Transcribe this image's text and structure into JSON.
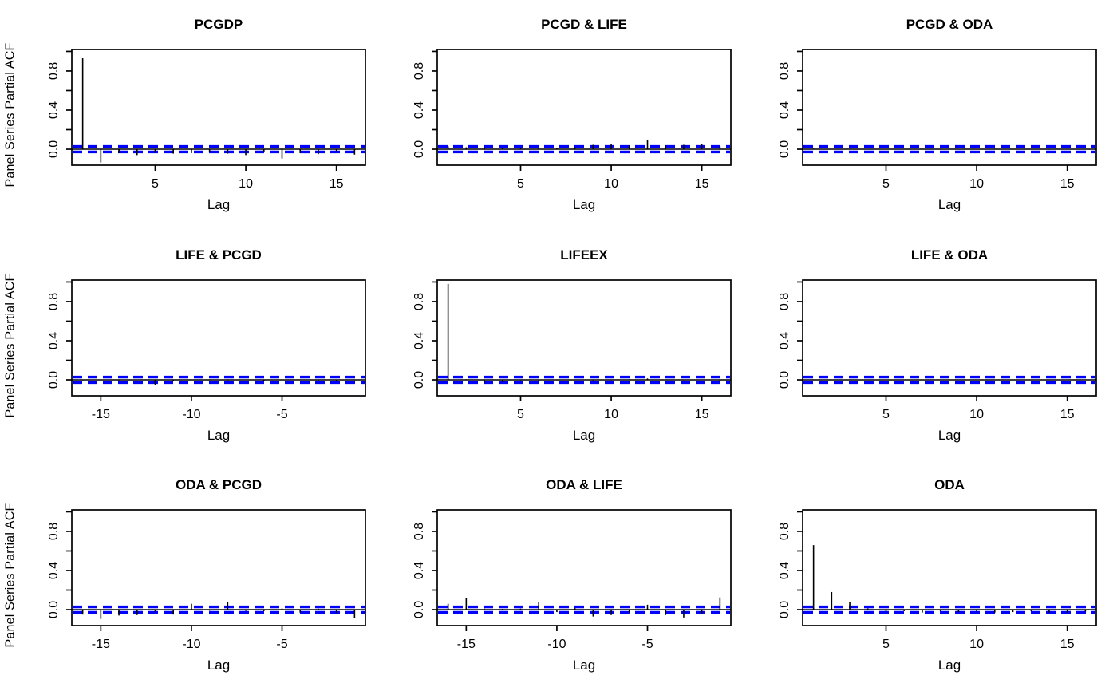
{
  "figure": {
    "ylab": "Panel Series Partial ACF",
    "xlab": "Lag",
    "ylim": [
      -0.163,
      1.02
    ],
    "y_ticks": [
      0,
      0.2,
      0.4,
      0.6,
      0.8,
      1.0
    ],
    "y_labeled_ticks": [
      {
        "v": 0.0,
        "label": "0.0"
      },
      {
        "v": 0.4,
        "label": "0.4"
      },
      {
        "v": 0.8,
        "label": "0.8"
      }
    ],
    "ci": 0.028,
    "colors": {
      "spike": "#000000",
      "zero_line": "#000000",
      "ci_line": "#0000FF",
      "box": "#000000",
      "background": "#FFFFFF",
      "text": "#000000"
    }
  },
  "chart_data": [
    {
      "type": "bar",
      "title": "PCGDP",
      "xlabel": "Lag",
      "xlim": [
        0.4,
        16.6
      ],
      "x_ticks": [
        5,
        10,
        15
      ],
      "x_tick_labels": [
        "5",
        "10",
        "15"
      ],
      "lags": [
        1,
        2,
        3,
        4,
        5,
        6,
        7,
        8,
        9,
        10,
        11,
        12,
        13,
        14,
        15,
        16
      ],
      "values": [
        0.93,
        -0.135,
        -0.04,
        -0.06,
        -0.035,
        -0.045,
        -0.04,
        -0.03,
        -0.045,
        -0.06,
        -0.025,
        -0.095,
        -0.04,
        -0.05,
        -0.02,
        -0.055
      ]
    },
    {
      "type": "bar",
      "title": "PCGD & LIFE",
      "xlabel": "Lag",
      "xlim": [
        0.4,
        16.6
      ],
      "x_ticks": [
        5,
        10,
        15
      ],
      "x_tick_labels": [
        "5",
        "10",
        "15"
      ],
      "lags": [
        1,
        2,
        3,
        4,
        5,
        6,
        7,
        8,
        9,
        10,
        11,
        12,
        13,
        14,
        15,
        16
      ],
      "values": [
        0.03,
        0.02,
        0.02,
        0.015,
        0.01,
        0.01,
        0.015,
        0.02,
        0.045,
        0.05,
        0.04,
        0.09,
        0.04,
        0.045,
        0.05,
        0.03
      ]
    },
    {
      "type": "bar",
      "title": "PCGD & ODA",
      "xlabel": "Lag",
      "xlim": [
        0.4,
        16.6
      ],
      "x_ticks": [
        5,
        10,
        15
      ],
      "x_tick_labels": [
        "5",
        "10",
        "15"
      ],
      "lags": [
        1,
        2,
        3,
        4,
        5,
        6,
        7,
        8,
        9,
        10,
        11,
        12,
        13,
        14,
        15,
        16
      ],
      "values": [
        0.006,
        -0.004,
        0.005,
        -0.004,
        0.004,
        -0.004,
        0.005,
        -0.005,
        0.004,
        -0.004,
        0.005,
        -0.004,
        0.004,
        -0.005,
        0.004,
        -0.004
      ]
    },
    {
      "type": "bar",
      "title": "LIFE & PCGD",
      "xlabel": "Lag",
      "xlim": [
        -16.6,
        -0.4
      ],
      "x_ticks": [
        -15,
        -10,
        -5
      ],
      "x_tick_labels": [
        "-15",
        "-10",
        "-5"
      ],
      "lags": [
        -16,
        -15,
        -14,
        -13,
        -12,
        -11,
        -10,
        -9,
        -8,
        -7,
        -6,
        -5,
        -4,
        -3,
        -2,
        -1
      ],
      "values": [
        -0.005,
        0.004,
        -0.006,
        0.004,
        -0.05,
        -0.008,
        0.004,
        -0.005,
        -0.006,
        0.004,
        -0.008,
        -0.004,
        0.005,
        -0.006,
        -0.01,
        -0.005
      ]
    },
    {
      "type": "bar",
      "title": "LIFEEX",
      "xlabel": "Lag",
      "xlim": [
        0.4,
        16.6
      ],
      "x_ticks": [
        5,
        10,
        15
      ],
      "x_tick_labels": [
        "5",
        "10",
        "15"
      ],
      "lags": [
        1,
        2,
        3,
        4,
        5,
        6,
        7,
        8,
        9,
        10,
        11,
        12,
        13,
        14,
        15,
        16
      ],
      "values": [
        0.98,
        0.006,
        -0.035,
        -0.025,
        -0.006,
        -0.012,
        -0.005,
        -0.004,
        -0.006,
        -0.005,
        0.006,
        0.014,
        0.004,
        -0.005,
        0.004,
        -0.008
      ]
    },
    {
      "type": "bar",
      "title": "LIFE & ODA",
      "xlabel": "Lag",
      "xlim": [
        0.4,
        16.6
      ],
      "x_ticks": [
        5,
        10,
        15
      ],
      "x_tick_labels": [
        "5",
        "10",
        "15"
      ],
      "lags": [
        1,
        2,
        3,
        4,
        5,
        6,
        7,
        8,
        9,
        10,
        11,
        12,
        13,
        14,
        15,
        16
      ],
      "values": [
        0.005,
        -0.003,
        0.004,
        -0.004,
        0.003,
        -0.003,
        0.004,
        -0.004,
        0.003,
        -0.004,
        0.004,
        -0.003,
        0.004,
        -0.004,
        0.003,
        -0.004
      ]
    },
    {
      "type": "bar",
      "title": "ODA & PCGD",
      "xlabel": "Lag",
      "xlim": [
        -16.6,
        -0.4
      ],
      "x_ticks": [
        -15,
        -10,
        -5
      ],
      "x_tick_labels": [
        "-15",
        "-10",
        "-5"
      ],
      "lags": [
        -16,
        -15,
        -14,
        -13,
        -12,
        -11,
        -10,
        -9,
        -8,
        -7,
        -6,
        -5,
        -4,
        -3,
        -2,
        -1
      ],
      "values": [
        -0.05,
        -0.095,
        -0.06,
        -0.055,
        -0.02,
        -0.05,
        0.06,
        -0.01,
        0.078,
        -0.012,
        -0.015,
        0.012,
        -0.03,
        0.01,
        -0.035,
        -0.085
      ]
    },
    {
      "type": "bar",
      "title": "ODA & LIFE",
      "xlabel": "Lag",
      "xlim": [
        -16.6,
        -0.4
      ],
      "x_ticks": [
        -15,
        -10,
        -5
      ],
      "x_tick_labels": [
        "-15",
        "-10",
        "-5"
      ],
      "lags": [
        -16,
        -15,
        -14,
        -13,
        -12,
        -11,
        -10,
        -9,
        -8,
        -7,
        -6,
        -5,
        -4,
        -3,
        -2,
        -1
      ],
      "values": [
        0.06,
        0.115,
        0.01,
        0.008,
        0.01,
        0.08,
        -0.025,
        0.015,
        -0.07,
        -0.055,
        -0.03,
        0.05,
        -0.055,
        -0.08,
        -0.04,
        0.125
      ]
    },
    {
      "type": "bar",
      "title": "ODA",
      "xlabel": "Lag",
      "xlim": [
        0.4,
        16.6
      ],
      "x_ticks": [
        5,
        10,
        15
      ],
      "x_tick_labels": [
        "5",
        "10",
        "15"
      ],
      "lags": [
        1,
        2,
        3,
        4,
        5,
        6,
        7,
        8,
        9,
        10,
        11,
        12,
        13,
        14,
        15,
        16
      ],
      "values": [
        0.66,
        0.18,
        0.08,
        0.012,
        -0.02,
        -0.015,
        -0.03,
        -0.015,
        -0.025,
        -0.02,
        -0.03,
        -0.025,
        -0.015,
        -0.03,
        -0.03,
        -0.02
      ]
    }
  ]
}
